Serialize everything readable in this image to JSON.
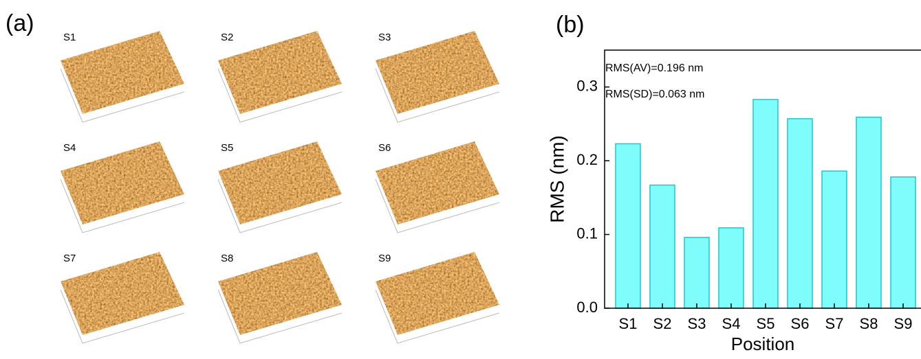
{
  "panel_a": {
    "label": "(a)",
    "images": [
      "S1",
      "S2",
      "S3",
      "S4",
      "S5",
      "S6",
      "S7",
      "S8",
      "S9"
    ]
  },
  "chart_data": {
    "type": "bar",
    "panel_label": "(b)",
    "xlabel": "Position",
    "ylabel": "RMS (nm)",
    "annotations": [
      "RMS(AV)=0.196 nm",
      "RMS(SD)=0.063 nm"
    ],
    "categories": [
      "S1",
      "S2",
      "S3",
      "S4",
      "S5",
      "S6",
      "S7",
      "S8",
      "S9"
    ],
    "values": [
      0.223,
      0.167,
      0.096,
      0.109,
      0.283,
      0.257,
      0.186,
      0.259,
      0.178
    ],
    "color": "#7ffcfc",
    "edge_color": "#1fc6d0",
    "ylim": [
      0,
      0.35
    ],
    "yticks": [
      {
        "value": 0,
        "label": "0.0"
      },
      0.1,
      0.2,
      0.3
    ]
  }
}
